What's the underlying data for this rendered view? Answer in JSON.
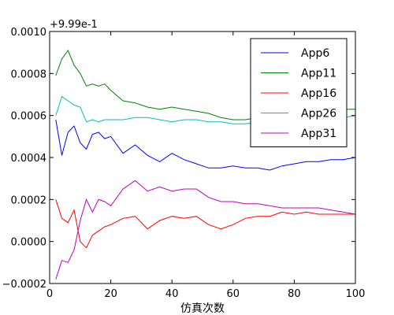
{
  "chart_data": {
    "type": "line",
    "xlabel": "仿真次数",
    "ylabel": "",
    "offset_text": "+9.99e-1",
    "xlim": [
      0,
      100
    ],
    "ylim": [
      -0.0002,
      0.001
    ],
    "xticks": [
      0,
      20,
      40,
      60,
      80,
      100
    ],
    "yticks": [
      -0.0002,
      0.0,
      0.0002,
      0.0004,
      0.0006,
      0.0008,
      0.001
    ],
    "xtick_labels": [
      "0",
      "20",
      "40",
      "60",
      "80",
      "100"
    ],
    "ytick_labels": [
      "−0.0002",
      "0.0000",
      "0.0002",
      "0.0004",
      "0.0006",
      "0.0008",
      "0.0010"
    ],
    "grid": false,
    "legend_position": "top-right",
    "x": [
      2,
      4,
      6,
      8,
      10,
      12,
      14,
      16,
      18,
      20,
      24,
      28,
      32,
      36,
      40,
      44,
      48,
      52,
      56,
      60,
      64,
      68,
      72,
      76,
      80,
      84,
      88,
      92,
      96,
      100
    ],
    "series": [
      {
        "name": "App6",
        "color": "#0000ff",
        "values": [
          0.00058,
          0.00041,
          0.00052,
          0.00055,
          0.00047,
          0.00044,
          0.00051,
          0.00052,
          0.00049,
          0.0005,
          0.00042,
          0.00046,
          0.00041,
          0.00038,
          0.00042,
          0.00039,
          0.00037,
          0.00035,
          0.00035,
          0.00036,
          0.00035,
          0.00035,
          0.00034,
          0.00036,
          0.00037,
          0.00038,
          0.00038,
          0.00039,
          0.00039,
          0.0004
        ]
      },
      {
        "name": "App11",
        "color": "#008000",
        "values": [
          0.00079,
          0.00087,
          0.00091,
          0.00084,
          0.0008,
          0.00074,
          0.00075,
          0.00074,
          0.00075,
          0.00072,
          0.00067,
          0.00066,
          0.00064,
          0.00063,
          0.00064,
          0.00063,
          0.00062,
          0.00061,
          0.00059,
          0.00058,
          0.00058,
          0.00059,
          0.00059,
          0.0006,
          0.00061,
          0.00061,
          0.00062,
          0.00062,
          0.00063,
          0.00063
        ]
      },
      {
        "name": "App16",
        "color": "#ff0000",
        "values": [
          0.0002,
          0.00011,
          9e-05,
          0.00015,
          0.0,
          -3e-05,
          3e-05,
          5e-05,
          7e-05,
          8e-05,
          0.00011,
          0.00012,
          6e-05,
          0.0001,
          0.00012,
          0.00011,
          0.00012,
          8e-05,
          6e-05,
          8e-05,
          0.00011,
          0.00012,
          0.00012,
          0.00014,
          0.00013,
          0.00014,
          0.00013,
          0.00013,
          0.00013,
          0.00013
        ]
      },
      {
        "name": "App26",
        "color": "#00bfbf",
        "values": [
          0.0006,
          0.00069,
          0.00067,
          0.00065,
          0.00064,
          0.00057,
          0.00058,
          0.00057,
          0.00058,
          0.00058,
          0.00058,
          0.00059,
          0.00059,
          0.00058,
          0.00057,
          0.00058,
          0.00058,
          0.00057,
          0.00057,
          0.00056,
          0.00056,
          0.00057,
          0.00057,
          0.00057,
          0.00058,
          0.00058,
          0.00059,
          0.00059,
          0.00059,
          0.0006
        ]
      },
      {
        "name": "App31",
        "color": "#bf00bf",
        "values": [
          -0.00018,
          -9e-05,
          -0.0001,
          -4e-05,
          0.0001,
          0.0002,
          0.00014,
          0.0002,
          0.00019,
          0.00017,
          0.00025,
          0.00029,
          0.00024,
          0.00026,
          0.00024,
          0.00025,
          0.00025,
          0.00021,
          0.00019,
          0.00019,
          0.00018,
          0.00018,
          0.00017,
          0.00016,
          0.00016,
          0.00016,
          0.00016,
          0.00015,
          0.00014,
          0.00013
        ]
      }
    ]
  }
}
